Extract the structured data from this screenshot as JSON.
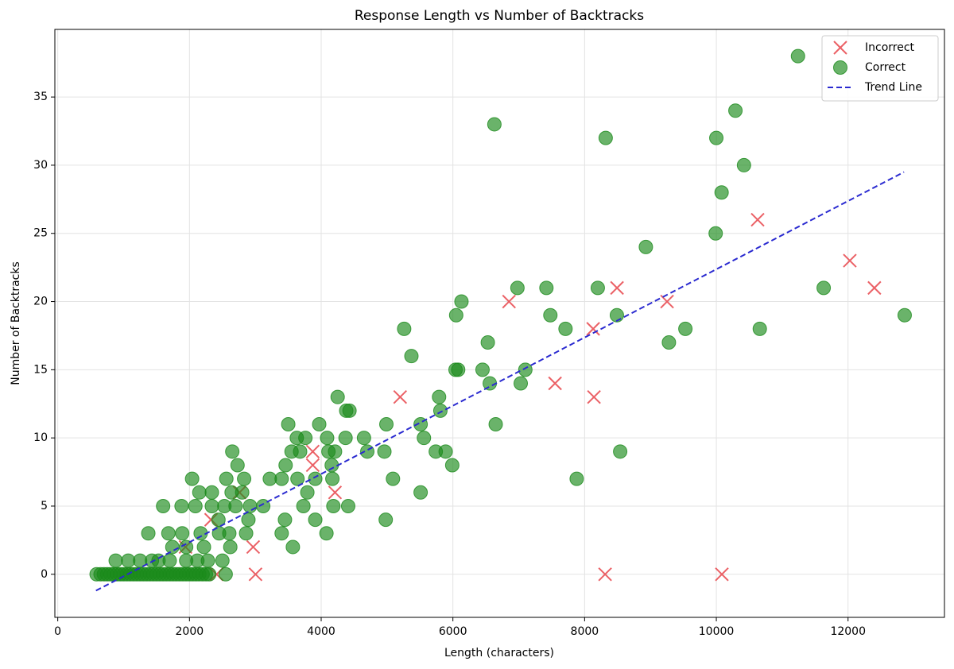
{
  "chart_data": {
    "type": "scatter",
    "title": "Response Length vs Number of Backtracks",
    "x_label": "Length (characters)",
    "y_label": "Number of Backtracks",
    "xlim": [
      -44,
      13464
    ],
    "ylim": [
      -3.16,
      39.96
    ],
    "xticks": [
      0,
      2000,
      4000,
      6000,
      8000,
      10000,
      12000
    ],
    "yticks": [
      0,
      5,
      10,
      15,
      20,
      25,
      30,
      35
    ],
    "grid": true,
    "legend": "upper right",
    "series": [
      {
        "name": "Incorrect",
        "color": "#e8454b",
        "marker": "x",
        "x": [
          2328,
          2412,
          2967,
          3003,
          3872,
          3872,
          4210,
          5199,
          6852,
          7551,
          8130,
          8142,
          8311,
          8492,
          9252,
          10084,
          10627,
          12027,
          12400,
          2760,
          1940
        ],
        "values": [
          4,
          0,
          2,
          0,
          9,
          8,
          6,
          13,
          20,
          14,
          18,
          13,
          0,
          21,
          20,
          0,
          26,
          23,
          21,
          6,
          2
        ]
      },
      {
        "name": "Correct",
        "color": "#1a8a1a",
        "marker": "o",
        "x": [
          590,
          650,
          700,
          750,
          800,
          850,
          900,
          950,
          1000,
          1050,
          1100,
          1150,
          1200,
          1250,
          1300,
          1350,
          1400,
          1450,
          1500,
          1550,
          1600,
          1650,
          1700,
          1750,
          1800,
          1850,
          1900,
          1950,
          2000,
          2050,
          2100,
          2150,
          2200,
          2250,
          2300,
          2550,
          880,
          1070,
          1250,
          1430,
          1530,
          1700,
          1950,
          2120,
          2280,
          2500,
          1740,
          1950,
          2220,
          2620,
          3570,
          1375,
          1680,
          1890,
          2170,
          2450,
          2605,
          2860,
          3400,
          4080,
          2440,
          2895,
          3450,
          3910,
          4980,
          1600,
          1880,
          2090,
          2340,
          2530,
          2700,
          2920,
          3120,
          3730,
          4185,
          4410,
          2150,
          2340,
          2640,
          2800,
          3790,
          5510,
          2040,
          2560,
          2830,
          3220,
          3400,
          3640,
          3910,
          4170,
          5090,
          7880,
          2730,
          3460,
          4160,
          5990,
          2650,
          3550,
          3680,
          4110,
          4210,
          4700,
          4960,
          5740,
          5890,
          8540,
          3630,
          3760,
          4090,
          4370,
          4650,
          5560,
          3500,
          3970,
          4990,
          5510,
          6650,
          4380,
          4430,
          5810,
          4250,
          5790,
          6560,
          7030,
          6040,
          6080,
          6450,
          7100,
          5370,
          6530,
          9280,
          5260,
          7710,
          9530,
          10660,
          6050,
          7480,
          8490,
          12860,
          6130,
          6980,
          7420,
          8200,
          11630,
          8930,
          9990,
          10080,
          10420,
          8320,
          10000,
          6630,
          10290,
          11240
        ],
        "values": [
          0,
          0,
          0,
          0,
          0,
          0,
          0,
          0,
          0,
          0,
          0,
          0,
          0,
          0,
          0,
          0,
          0,
          0,
          0,
          0,
          0,
          0,
          0,
          0,
          0,
          0,
          0,
          0,
          0,
          0,
          0,
          0,
          0,
          0,
          0,
          0,
          1,
          1,
          1,
          1,
          1,
          1,
          1,
          1,
          1,
          1,
          2,
          2,
          2,
          2,
          2,
          3,
          3,
          3,
          3,
          3,
          3,
          3,
          3,
          3,
          4,
          4,
          4,
          4,
          4,
          5,
          5,
          5,
          5,
          5,
          5,
          5,
          5,
          5,
          5,
          5,
          6,
          6,
          6,
          6,
          6,
          6,
          7,
          7,
          7,
          7,
          7,
          7,
          7,
          7,
          7,
          7,
          8,
          8,
          8,
          8,
          9,
          9,
          9,
          9,
          9,
          9,
          9,
          9,
          9,
          9,
          10,
          10,
          10,
          10,
          10,
          10,
          11,
          11,
          11,
          11,
          11,
          12,
          12,
          12,
          13,
          13,
          14,
          14,
          15,
          15,
          15,
          15,
          16,
          17,
          17,
          18,
          18,
          18,
          18,
          19,
          19,
          19,
          19,
          20,
          21,
          21,
          21,
          21,
          24,
          25,
          28,
          30,
          32,
          32,
          33,
          34,
          38
        ]
      },
      {
        "name": "Trend Line",
        "color": "#2a2ad0",
        "marker": "dashed-line",
        "x": [
          580,
          12850
        ],
        "values": [
          -1.2,
          29.5
        ]
      }
    ]
  }
}
